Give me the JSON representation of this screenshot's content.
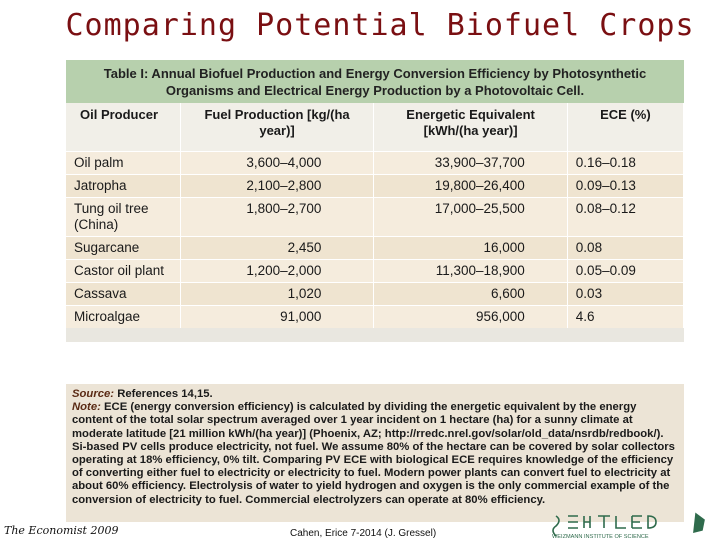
{
  "title": "Comparing Potential Biofuel Crops",
  "table": {
    "caption_line1": "Table I:  Annual Biofuel Production and Energy Conversion Efficiency by Photosynthetic",
    "caption_line2": "Organisms and Electrical Energy Production by a Photovoltaic Cell.",
    "headers": [
      "Oil Producer",
      "Fuel Production [kg/(ha year)]",
      "Energetic Equivalent [kWh/(ha year)]",
      "ECE (%)"
    ],
    "rows": [
      {
        "producer": "Oil palm",
        "fuel": "3,600–4,000",
        "energy": "33,900–37,700",
        "ece": "0.16–0.18"
      },
      {
        "producer": "Jatropha",
        "fuel": "2,100–2,800",
        "energy": "19,800–26,400",
        "ece": "0.09–0.13"
      },
      {
        "producer": "Tung oil tree (China)",
        "fuel": "1,800–2,700",
        "energy": "17,000–25,500",
        "ece": "0.08–0.12"
      },
      {
        "producer": "Sugarcane",
        "fuel": "2,450",
        "energy": "16,000",
        "ece": "0.08"
      },
      {
        "producer": "Castor oil plant",
        "fuel": "1,200–2,000",
        "energy": "11,300–18,900",
        "ece": "0.05–0.09"
      },
      {
        "producer": "Cassava",
        "fuel": "1,020",
        "energy": "6,600",
        "ece": "0.03"
      },
      {
        "producer": "Microalgae",
        "fuel": "91,000",
        "energy": "956,000",
        "ece": "4.6"
      }
    ]
  },
  "note": {
    "source_label": "Source:",
    "source_text": " References 14,15.",
    "note_label": "Note:",
    "note_text": " ECE (energy conversion efficiency) is calculated by dividing the energetic equivalent by the energy content of the total solar spectrum averaged over 1 year incident on 1 hectare (ha) for a sunny climate at moderate latitude [21 million kWh/(ha year)] (Phoenix, AZ; http://rredc.nrel.gov/solar/old_data/nsrdb/redbook/). Si-based PV cells produce electricity, not fuel. We assume 80% of the hectare can be covered by solar collectors operating at 18% efficiency, 0% tilt. Comparing PV ECE with biological ECE requires knowledge of the efficiency of converting either fuel to electricity or electricity to fuel. Modern power plants can convert fuel to electricity at about 60% efficiency. Electrolysis of water to yield hydrogen and oxygen is the only commercial example of the conversion of electricity to fuel. Commercial electrolyzers can operate at 80% efficiency."
  },
  "footer": {
    "economist": "The Economist 2009",
    "credit": "Cahen, Erice 7-2014 (J. Gressel)",
    "logo_text": "WEIZMANN INSTITUTE OF SCIENCE"
  },
  "colors": {
    "title": "#7a0f12",
    "caption_bg": "#b7d0ad",
    "row_alt": "#f5ecdd",
    "row_base": "#efe4d0",
    "logo": "#2f6b4c"
  }
}
